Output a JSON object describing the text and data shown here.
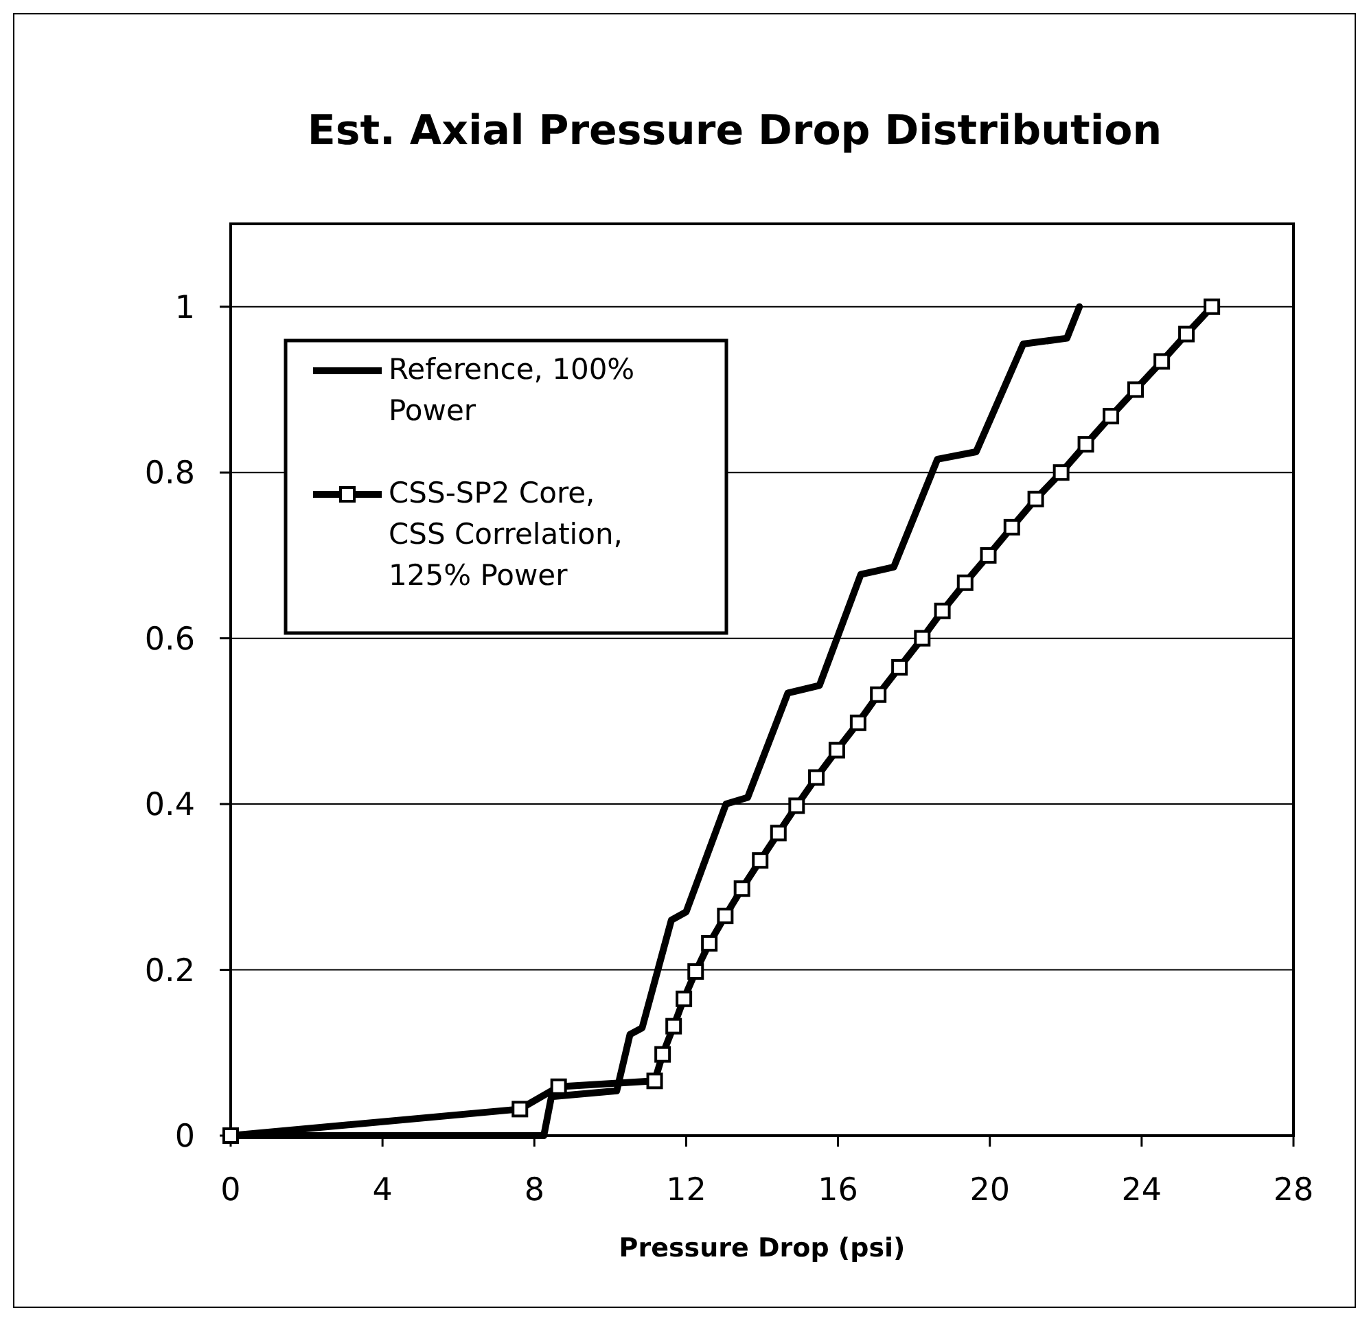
{
  "chart_data": {
    "type": "line",
    "title": "Est. Axial Pressure Drop Distribution",
    "xlabel": "Pressure Drop (psi)",
    "xlim": [
      0,
      28
    ],
    "xticks": [
      0,
      4,
      8,
      12,
      16,
      20,
      24,
      28
    ],
    "ylim": [
      0,
      1.1
    ],
    "yticks": [
      0,
      0.2,
      0.4,
      0.6,
      0.8,
      1
    ],
    "grid": "y",
    "legend": "top left",
    "series": [
      {
        "name": "Reference, 100% Power",
        "color": "#000000",
        "marker": "none",
        "x": [
          0,
          8.25,
          8.45,
          10.17,
          10.52,
          10.84,
          11.61,
          12.0,
          13.05,
          13.62,
          14.68,
          15.51,
          16.6,
          17.47,
          18.62,
          19.64,
          20.88,
          22.03,
          22.36
        ],
        "values": [
          0,
          0,
          0.047,
          0.054,
          0.122,
          0.13,
          0.26,
          0.27,
          0.4,
          0.408,
          0.534,
          0.543,
          0.677,
          0.686,
          0.816,
          0.825,
          0.955,
          0.962,
          1
        ]
      },
      {
        "name": "CSS-SP2 Core, CSS Correlation, 125% Power",
        "color": "#000000",
        "marker": "square",
        "x": [
          0,
          7.62,
          8.64,
          11.17,
          11.38,
          11.67,
          11.94,
          12.25,
          12.61,
          13.03,
          13.47,
          13.95,
          14.43,
          14.91,
          15.43,
          15.97,
          16.53,
          17.06,
          17.62,
          18.22,
          18.75,
          19.35,
          19.96,
          20.58,
          21.21,
          21.88,
          22.53,
          23.19,
          23.84,
          24.53,
          25.18,
          25.85
        ],
        "values": [
          0,
          0.032,
          0.059,
          0.066,
          0.098,
          0.132,
          0.165,
          0.198,
          0.232,
          0.265,
          0.298,
          0.332,
          0.365,
          0.398,
          0.432,
          0.465,
          0.498,
          0.532,
          0.565,
          0.6,
          0.633,
          0.667,
          0.7,
          0.734,
          0.768,
          0.8,
          0.834,
          0.868,
          0.9,
          0.934,
          0.967,
          1
        ]
      }
    ]
  }
}
